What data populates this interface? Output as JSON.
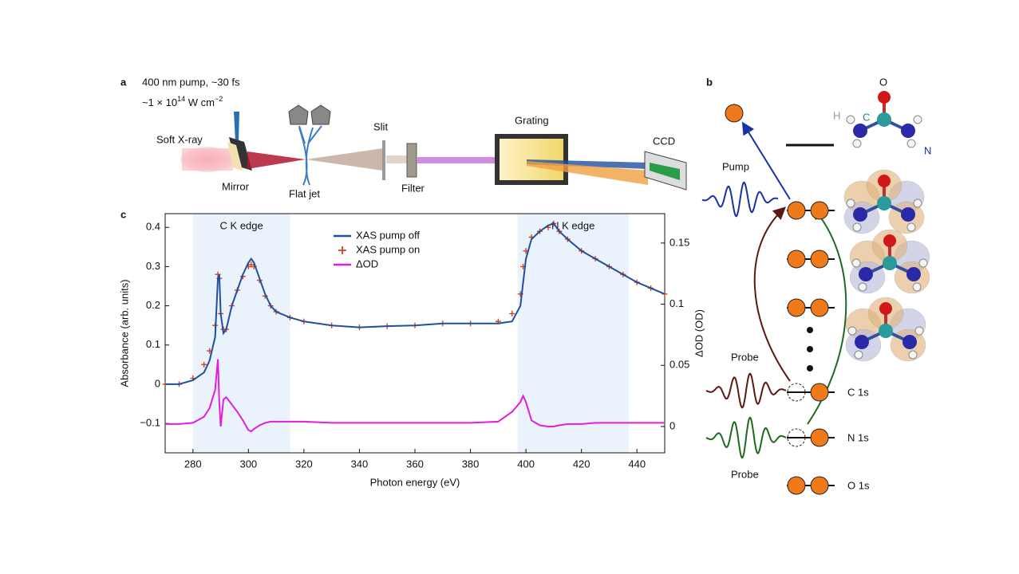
{
  "panel_a": {
    "label": "a",
    "pump_text": "400 nm pump, ~30 fs",
    "intensity": [
      "~1 × 10",
      "14",
      " W cm",
      "−2"
    ],
    "soft_xray": "Soft X-ray",
    "mirror": "Mirror",
    "flat_jet": "Flat jet",
    "slit": "Slit",
    "filter": "Filter",
    "grating": "Grating",
    "ccd": "CCD"
  },
  "panel_b": {
    "label": "b",
    "atoms": {
      "o": "O",
      "c": "C",
      "h": "H",
      "n": "N"
    },
    "pump": "Pump",
    "probe_c": "Probe",
    "probe_n": "Probe",
    "levels": [
      "C 1s",
      "N 1s",
      "O 1s"
    ]
  },
  "chart_data": {
    "type": "line",
    "panel_label": "c",
    "x_label": "Photon energy (eV)",
    "y_label": "Absorbance (arb. units)",
    "y2_label": "ΔOD (OD)",
    "x": [
      270,
      275,
      280,
      284,
      286,
      288,
      289,
      289.5,
      290,
      291,
      292,
      294,
      296,
      298,
      300,
      301,
      302,
      304,
      306,
      308,
      310,
      315,
      320,
      330,
      340,
      350,
      360,
      370,
      380,
      390,
      395,
      398,
      399,
      400,
      402,
      405,
      408,
      410,
      412,
      415,
      420,
      425,
      430,
      435,
      440,
      445,
      450
    ],
    "series": [
      {
        "name": "XAS pump off",
        "color": "#1f4f9e",
        "values": [
          0,
          0,
          0.01,
          0.03,
          0.06,
          0.12,
          0.27,
          0.28,
          0.18,
          0.13,
          0.14,
          0.2,
          0.24,
          0.28,
          0.31,
          0.32,
          0.31,
          0.27,
          0.23,
          0.2,
          0.185,
          0.17,
          0.16,
          0.15,
          0.145,
          0.148,
          0.15,
          0.155,
          0.155,
          0.155,
          0.16,
          0.2,
          0.26,
          0.32,
          0.37,
          0.39,
          0.405,
          0.41,
          0.39,
          0.37,
          0.34,
          0.32,
          0.3,
          0.28,
          0.26,
          0.245,
          0.23
        ]
      },
      {
        "name": "XAS pump on",
        "color": "#d2441d",
        "marker": "+",
        "values": [
          0,
          0,
          0.015,
          0.05,
          0.085,
          0.15,
          0.28,
          0.27,
          0.18,
          0.14,
          0.14,
          0.2,
          0.24,
          0.275,
          0.3,
          0.305,
          0.3,
          0.265,
          0.225,
          0.2,
          0.185,
          0.17,
          0.16,
          0.15,
          0.145,
          0.148,
          0.15,
          0.155,
          0.155,
          0.16,
          0.18,
          0.23,
          0.3,
          0.34,
          0.375,
          0.39,
          0.4,
          0.41,
          0.39,
          0.37,
          0.34,
          0.32,
          0.3,
          0.28,
          0.26,
          0.245,
          0.23
        ]
      },
      {
        "name": "ΔOD",
        "color": "#e01ee0",
        "axis": "y2",
        "values": [
          0.002,
          0.002,
          0.003,
          0.008,
          0.015,
          0.03,
          0.055,
          0.02,
          0.0,
          0.022,
          0.024,
          0.018,
          0.012,
          0.005,
          -0.003,
          -0.004,
          -0.002,
          0.001,
          0.003,
          0.004,
          0.004,
          0.004,
          0.004,
          0.003,
          0.003,
          0.003,
          0.003,
          0.003,
          0.003,
          0.004,
          0.012,
          0.02,
          0.025,
          0.02,
          0.005,
          0.001,
          0.0,
          0.0,
          0.001,
          0.002,
          0.002,
          0.003,
          0.003,
          0.003,
          0.003,
          0.003,
          0.003
        ]
      }
    ],
    "xlim": [
      270,
      450
    ],
    "ylim": [
      -0.175,
      0.435
    ],
    "y2lim": [
      -0.0215,
      0.174
    ],
    "xticks": [
      280,
      300,
      320,
      340,
      360,
      380,
      400,
      420,
      440
    ],
    "yticks": [
      {
        "value": -0.1,
        "label": "−0.1"
      },
      0,
      0.1,
      0.2,
      0.3,
      0.4
    ],
    "y2ticks": [
      0,
      0.05,
      0.1,
      0.15
    ],
    "shaded_regions": [
      {
        "label": "C K edge",
        "range": [
          280,
          315
        ],
        "color": "#eaf3fc"
      },
      {
        "label": "N K edge",
        "range": [
          397,
          437
        ],
        "color": "#eaf3fc"
      }
    ]
  }
}
